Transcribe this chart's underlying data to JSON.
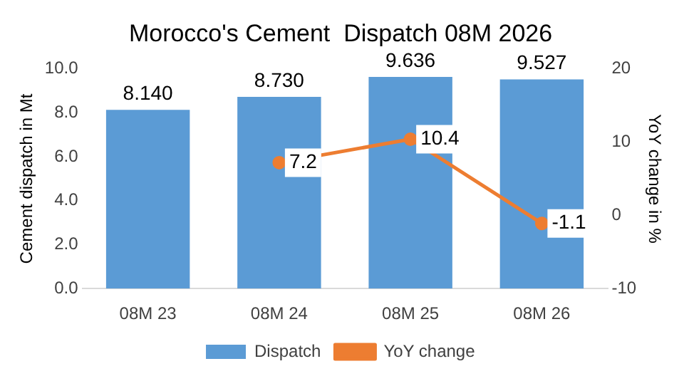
{
  "chart_data": {
    "type": "bar",
    "title": "Morocco's Cement  Dispatch 08M 2026",
    "ylabel": "Cement dispatch in Mt",
    "y2label": "YoY change in %",
    "categories": [
      "08M 23",
      "08M 24",
      "08M 25",
      "08M 26"
    ],
    "series": [
      {
        "name": "Dispatch",
        "color": "#5b9bd5",
        "values": [
          8.14,
          8.73,
          9.636,
          9.527
        ],
        "value_labels": [
          "8.140",
          "8.730",
          "9.636",
          "9.527"
        ]
      },
      {
        "name": "YoY change",
        "type": "line",
        "axis": "y2",
        "color": "#ed7d31",
        "values": [
          null,
          7.2,
          10.4,
          -1.1
        ],
        "value_labels": [
          null,
          "7.2",
          "10.4",
          "-1.1"
        ]
      }
    ],
    "ylim": [
      0,
      10
    ],
    "yticks": [
      {
        "value": 0,
        "label": "0.0"
      },
      {
        "value": 2,
        "label": "2.0"
      },
      {
        "value": 4,
        "label": "4.0"
      },
      {
        "value": 6,
        "label": "6.0"
      },
      {
        "value": 8,
        "label": "8.0"
      },
      {
        "value": 10,
        "label": "10.0"
      }
    ],
    "y2lim": [
      -10,
      20
    ],
    "y2ticks": [
      -10,
      0,
      10,
      20
    ],
    "legend": "bottom",
    "marker": "circle",
    "grid": false
  }
}
